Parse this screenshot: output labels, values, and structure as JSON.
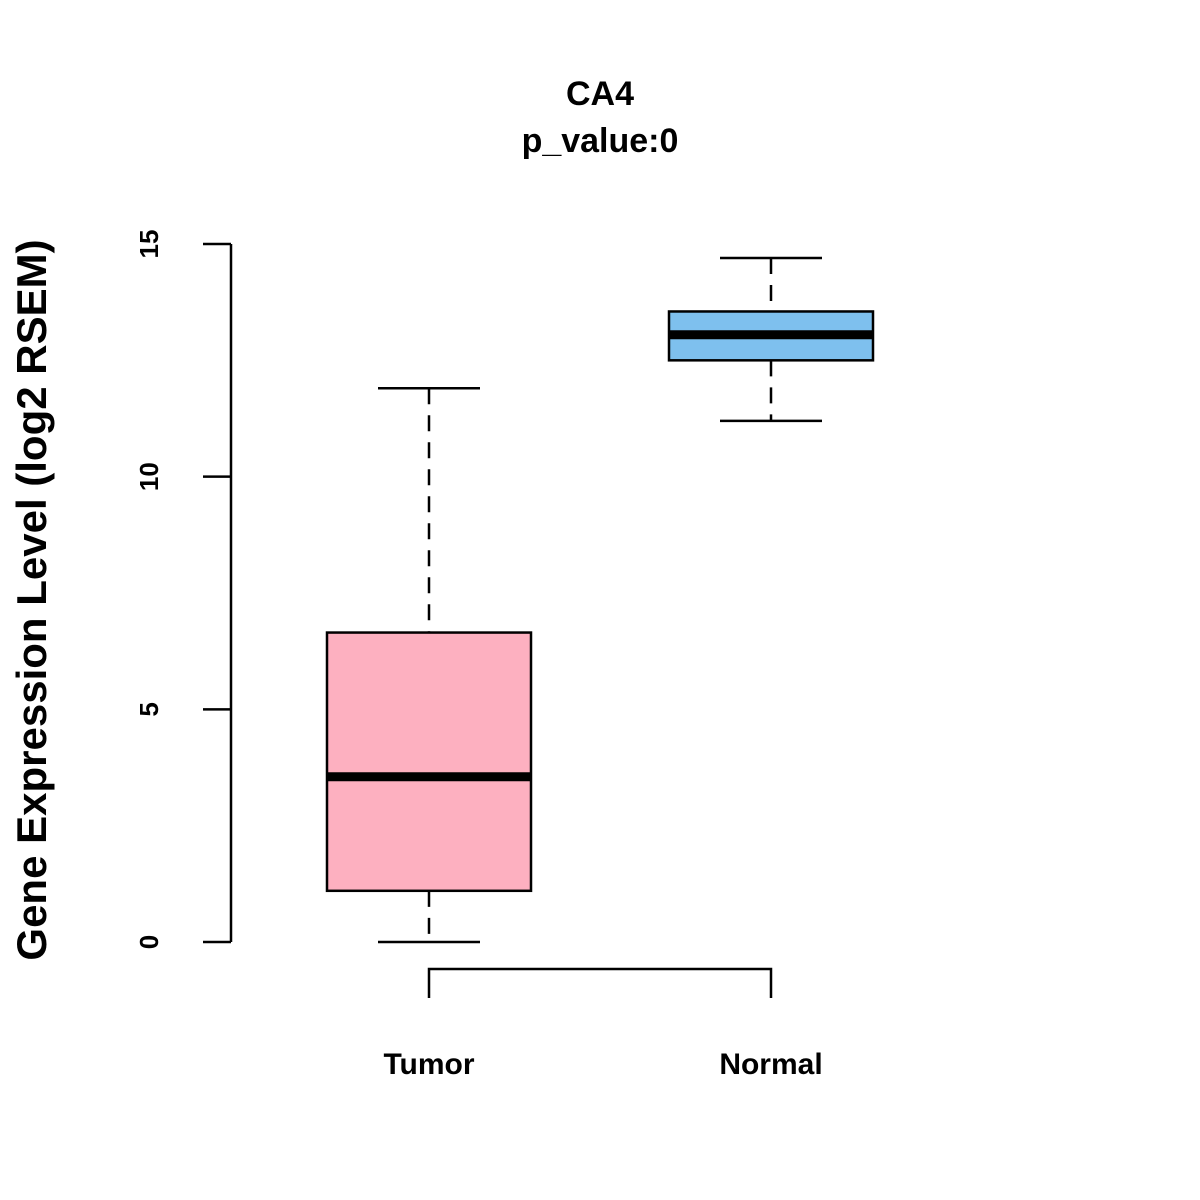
{
  "chart_data": {
    "type": "boxplot",
    "title": "CA4",
    "subtitle": "p_value:0",
    "xlabel": "",
    "ylabel": "Gene Expression Level (log2 RSEM)",
    "ylim": [
      0,
      15
    ],
    "yticks": [
      0,
      5,
      10,
      15
    ],
    "categories": [
      "Tumor",
      "Normal"
    ],
    "series": [
      {
        "name": "Tumor",
        "color": "#FDB0C0",
        "whisker_low": 0,
        "q1": 1.1,
        "median": 3.55,
        "q3": 6.65,
        "whisker_high": 11.9
      },
      {
        "name": "Normal",
        "color": "#7EC0EE",
        "whisker_low": 11.2,
        "q1": 12.5,
        "median": 13.05,
        "q3": 13.55,
        "whisker_high": 14.7
      }
    ],
    "comparison_bracket": [
      "Tumor",
      "Normal"
    ],
    "grid": false,
    "legend": "none"
  }
}
